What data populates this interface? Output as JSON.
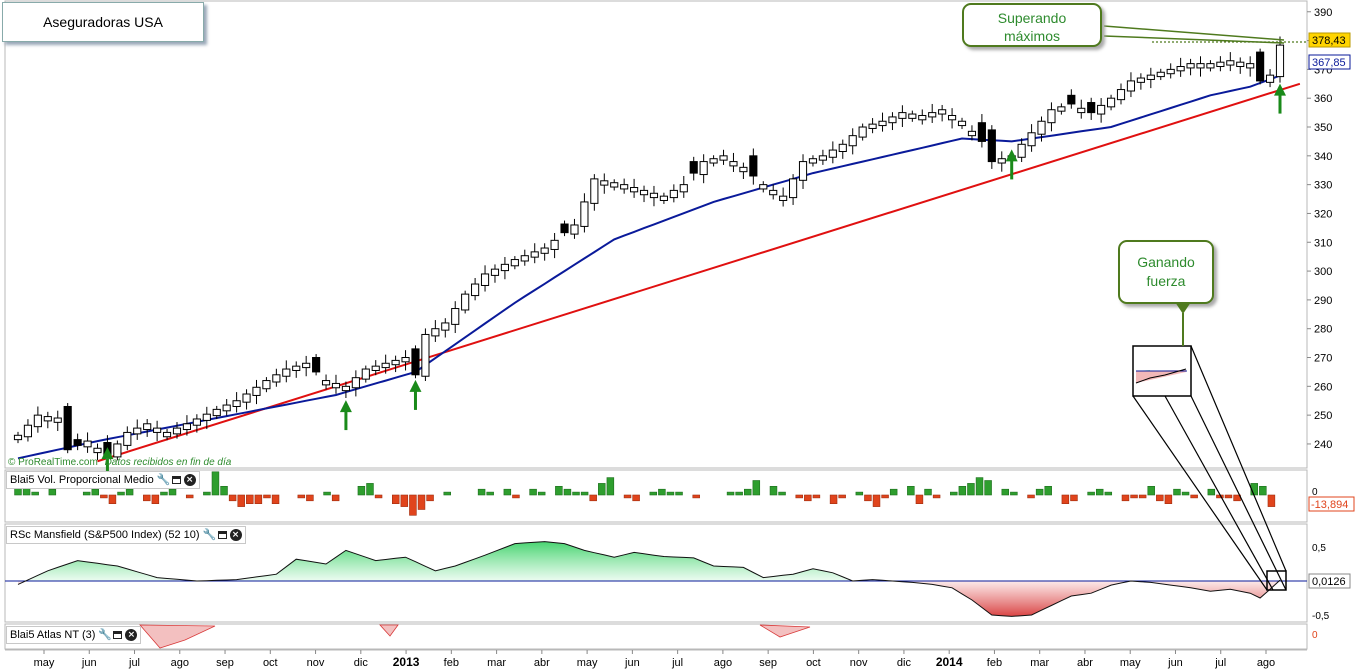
{
  "page": {
    "title": "Aseguradoras USA",
    "credit_source": "© ProRealTime.com",
    "credit_note": "Datos recibidos en fin de día"
  },
  "callouts": {
    "top": [
      "Superando",
      "máximos"
    ],
    "mid": [
      "Ganando",
      "fuerza"
    ]
  },
  "colors": {
    "up": "#ffffff",
    "down": "#000000",
    "ma_line": "#0a1a9a",
    "trend_line": "#e01010",
    "vol_up": "#2e9e2e",
    "vol_down": "#e0441c",
    "rsc_pos": "#2ecc5a",
    "rsc_neg": "#d83a3a",
    "arrow": "#1a8a1a",
    "callout_border": "#4f7a1e",
    "price_tag": "#ffd400"
  },
  "chart_data": [
    {
      "type": "candlestick",
      "ylim": [
        232,
        392
      ],
      "y_ticks": [
        240,
        250,
        260,
        270,
        280,
        290,
        300,
        310,
        320,
        330,
        340,
        350,
        360,
        370,
        380,
        390
      ],
      "y_tick_labels": [
        "240",
        "250",
        "260",
        "270",
        "280",
        "290",
        "300",
        "310",
        "320",
        "330",
        "340",
        "350",
        "360",
        "370",
        "380",
        "390"
      ],
      "last_price_label": "378,43",
      "ma_last_label": "367,85",
      "x_labels": [
        "may",
        "jun",
        "jul",
        "ago",
        "sep",
        "oct",
        "nov",
        "dic",
        "2013",
        "feb",
        "mar",
        "abr",
        "may",
        "jun",
        "jul",
        "ago",
        "sep",
        "oct",
        "nov",
        "dic",
        "2014",
        "feb",
        "mar",
        "abr",
        "may",
        "jun",
        "jul",
        "ago"
      ],
      "x_label_bold": [
        false,
        false,
        false,
        false,
        false,
        false,
        false,
        false,
        true,
        false,
        false,
        false,
        false,
        false,
        false,
        false,
        false,
        false,
        false,
        false,
        true,
        false,
        false,
        false,
        false,
        false,
        false,
        false
      ],
      "close_waypoints": [
        [
          0,
          243
        ],
        [
          2,
          250
        ],
        [
          4,
          249
        ],
        [
          5,
          238
        ],
        [
          7,
          241
        ],
        [
          9,
          236
        ],
        [
          11,
          244
        ],
        [
          13,
          247
        ],
        [
          15,
          244
        ],
        [
          17,
          247
        ],
        [
          20,
          252
        ],
        [
          22,
          255
        ],
        [
          25,
          262
        ],
        [
          27,
          266
        ],
        [
          29,
          268
        ],
        [
          31,
          262
        ],
        [
          33,
          260
        ],
        [
          35,
          266
        ],
        [
          37,
          268
        ],
        [
          39,
          270
        ],
        [
          40,
          264
        ],
        [
          41,
          278
        ],
        [
          43,
          282
        ],
        [
          45,
          292
        ],
        [
          47,
          299
        ],
        [
          50,
          304
        ],
        [
          53,
          308
        ],
        [
          56,
          316
        ],
        [
          58,
          332
        ],
        [
          61,
          330
        ],
        [
          63,
          328
        ],
        [
          65,
          326
        ],
        [
          67,
          330
        ],
        [
          69,
          338
        ],
        [
          71,
          340
        ],
        [
          73,
          336
        ],
        [
          75,
          330
        ],
        [
          77,
          326
        ],
        [
          79,
          338
        ],
        [
          81,
          340
        ],
        [
          83,
          344
        ],
        [
          85,
          350
        ],
        [
          87,
          352
        ],
        [
          89,
          355
        ],
        [
          91,
          354
        ],
        [
          93,
          356
        ],
        [
          95,
          352
        ],
        [
          97,
          345
        ],
        [
          98,
          338
        ],
        [
          100,
          340
        ],
        [
          102,
          348
        ],
        [
          104,
          356
        ],
        [
          106,
          358
        ],
        [
          108,
          355
        ],
        [
          110,
          360
        ],
        [
          112,
          366
        ],
        [
          114,
          368
        ],
        [
          116,
          370
        ],
        [
          118,
          372
        ],
        [
          120,
          372
        ],
        [
          122,
          373
        ],
        [
          124,
          372
        ],
        [
          125,
          366
        ],
        [
          126,
          368
        ],
        [
          127,
          378.43
        ]
      ],
      "bear_days": [
        5,
        6,
        9,
        30,
        40,
        55,
        68,
        74,
        97,
        98,
        106,
        108,
        125
      ],
      "ma_waypoints": [
        [
          0,
          235
        ],
        [
          8,
          241
        ],
        [
          20,
          249
        ],
        [
          32,
          257
        ],
        [
          40,
          265
        ],
        [
          50,
          289
        ],
        [
          60,
          311
        ],
        [
          70,
          324
        ],
        [
          80,
          334
        ],
        [
          90,
          342
        ],
        [
          95,
          346
        ],
        [
          100,
          345
        ],
        [
          110,
          350
        ],
        [
          120,
          361
        ],
        [
          124,
          364
        ],
        [
          127,
          367.85
        ]
      ],
      "trend_line": {
        "start": [
          8,
          234
        ],
        "end": [
          129,
          365
        ]
      },
      "arrow_days": [
        9,
        33,
        40,
        100,
        127
      ]
    },
    {
      "type": "bar",
      "title": "Blai5 Vol. Proporcional Medio",
      "y_tick_labels": [
        "0"
      ],
      "last_value_label": "-13,894",
      "values": [
        4,
        3,
        1,
        0,
        2,
        0,
        0,
        0,
        1,
        2,
        -1,
        -3,
        1,
        2,
        0,
        -2,
        -3,
        1,
        2,
        0,
        -1,
        0,
        1,
        8,
        3,
        -2,
        -4,
        -3,
        -3,
        -1,
        -3,
        0,
        0,
        -1,
        -2,
        0,
        1,
        -2,
        0,
        0,
        3,
        4,
        -1,
        0,
        -3,
        -4,
        -7,
        -5,
        -2,
        0,
        1,
        0,
        0,
        0,
        2,
        1,
        0,
        2,
        -1,
        0,
        2,
        1,
        0,
        3,
        2,
        1,
        1,
        -2,
        4,
        6,
        0,
        -1,
        -2,
        0,
        1,
        2,
        1,
        1,
        0,
        -1,
        0,
        0,
        0,
        1,
        1,
        2,
        5,
        0,
        3,
        1,
        0,
        -1,
        -2,
        -1,
        0,
        -3,
        -1,
        0,
        1,
        -2,
        -4,
        -1,
        2,
        0,
        3,
        -3,
        2,
        -1,
        0,
        1,
        3,
        4,
        6,
        5,
        0,
        2,
        1,
        0,
        -1,
        2,
        3,
        0,
        -3,
        -2,
        0,
        1,
        2,
        1,
        0,
        -2,
        -1,
        -1,
        3,
        -2,
        -3,
        2,
        1,
        -1,
        0,
        2,
        -1,
        -1,
        -2,
        0,
        4,
        3,
        -4
      ]
    },
    {
      "type": "area",
      "title": "RSc Mansfield (S&P500 Index) (52 10)",
      "y_tick_labels": [
        "0,5",
        "-0,5"
      ],
      "last_value_label": "0,0126",
      "waypoints": [
        [
          0,
          -0.05
        ],
        [
          3,
          0.15
        ],
        [
          6,
          0.3
        ],
        [
          10,
          0.22
        ],
        [
          14,
          0.05
        ],
        [
          18,
          0.0
        ],
        [
          22,
          0.02
        ],
        [
          26,
          0.1
        ],
        [
          28,
          0.32
        ],
        [
          31,
          0.25
        ],
        [
          33,
          0.45
        ],
        [
          36,
          0.3
        ],
        [
          39,
          0.35
        ],
        [
          42,
          0.15
        ],
        [
          44,
          0.22
        ],
        [
          47,
          0.38
        ],
        [
          50,
          0.55
        ],
        [
          53,
          0.58
        ],
        [
          55,
          0.55
        ],
        [
          57,
          0.45
        ],
        [
          60,
          0.35
        ],
        [
          62,
          0.42
        ],
        [
          65,
          0.36
        ],
        [
          68,
          0.34
        ],
        [
          70,
          0.22
        ],
        [
          73,
          0.2
        ],
        [
          75,
          0.05
        ],
        [
          78,
          0.1
        ],
        [
          80,
          0.18
        ],
        [
          82,
          0.12
        ],
        [
          84,
          0.0
        ],
        [
          86,
          0.02
        ],
        [
          88,
          0.0
        ],
        [
          90,
          -0.02
        ],
        [
          92,
          -0.05
        ],
        [
          94,
          -0.1
        ],
        [
          96,
          -0.28
        ],
        [
          98,
          -0.5
        ],
        [
          100,
          -0.52
        ],
        [
          102,
          -0.5
        ],
        [
          104,
          -0.36
        ],
        [
          106,
          -0.22
        ],
        [
          108,
          -0.18
        ],
        [
          110,
          -0.06
        ],
        [
          112,
          0.0
        ],
        [
          114,
          -0.02
        ],
        [
          116,
          -0.06
        ],
        [
          118,
          -0.1
        ],
        [
          120,
          -0.15
        ],
        [
          122,
          -0.12
        ],
        [
          124,
          -0.18
        ],
        [
          125,
          -0.25
        ],
        [
          126,
          -0.12
        ],
        [
          127,
          0.0126
        ]
      ]
    },
    {
      "type": "area",
      "title": "Blai5 Atlas NT (3)",
      "y_tick_labels": [
        "0"
      ]
    }
  ]
}
